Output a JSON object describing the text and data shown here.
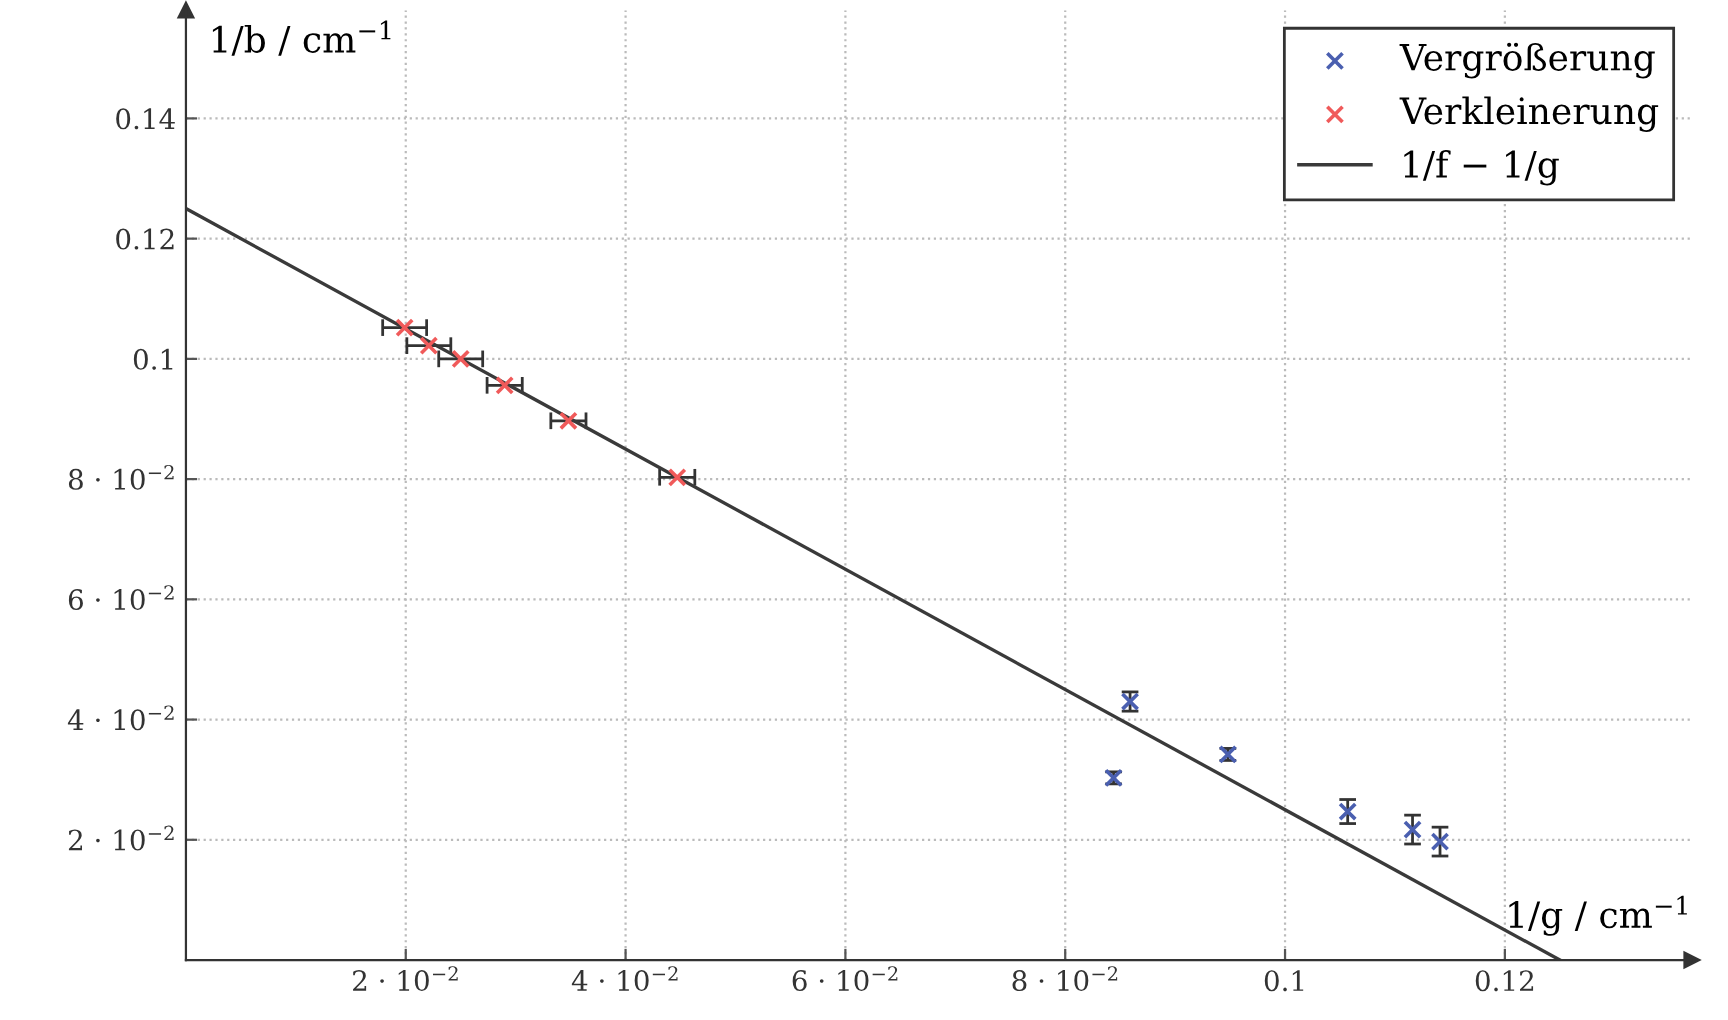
{
  "chart_data": {
    "type": "scatter",
    "xlabel": "1/g / cm$^{−1}$",
    "ylabel": "1/b / cm$^{−1}$",
    "xlim": [
      0,
      0.137
    ],
    "ylim": [
      0,
      0.158
    ],
    "xticks": [
      {
        "value": 0.02,
        "label": "2 · 10$^{−2}$"
      },
      {
        "value": 0.04,
        "label": "4 · 10$^{−2}$"
      },
      {
        "value": 0.06,
        "label": "6 · 10$^{−2}$"
      },
      {
        "value": 0.08,
        "label": "8 · 10$^{−2}$"
      },
      0.1,
      0.12
    ],
    "yticks": [
      {
        "value": 0.02,
        "label": "2 · 10$^{−2}$"
      },
      {
        "value": 0.04,
        "label": "4 · 10$^{−2}$"
      },
      {
        "value": 0.06,
        "label": "6 · 10$^{−2}$"
      },
      {
        "value": 0.08,
        "label": "8 · 10$^{−2}$"
      },
      0.1,
      0.12,
      0.14
    ],
    "grid": true,
    "legend": "top right",
    "series": [
      {
        "name": "Vergrößerung",
        "color": "#4a5fb0",
        "marker": "cross",
        "x": [
          0.0859,
          0.0844,
          0.0948,
          0.1057,
          0.1116,
          0.1141
        ],
        "values": [
          0.043,
          0.0303,
          0.0342,
          0.0247,
          0.0217,
          0.0197
        ],
        "errors": [
          0.0016,
          0.001,
          0.001,
          0.002,
          0.0024,
          0.0024
        ]
      },
      {
        "name": "Verkleinerung",
        "color": "#f05a5a",
        "marker": "cross",
        "x": [
          0.0199,
          0.0221,
          0.025,
          0.029,
          0.0348,
          0.0447
        ],
        "values": [
          0.1052,
          0.1022,
          0.1,
          0.0956,
          0.0897,
          0.0803
        ],
        "xerrors": [
          0.002,
          0.002,
          0.002,
          0.0016,
          0.0016,
          0.0016
        ]
      },
      {
        "name": "1/f − 1/g",
        "color": "#3a3a3a",
        "type": "line",
        "line_style": "solid",
        "x": [
          0,
          0.125
        ],
        "values": [
          0.125,
          0
        ]
      }
    ]
  }
}
